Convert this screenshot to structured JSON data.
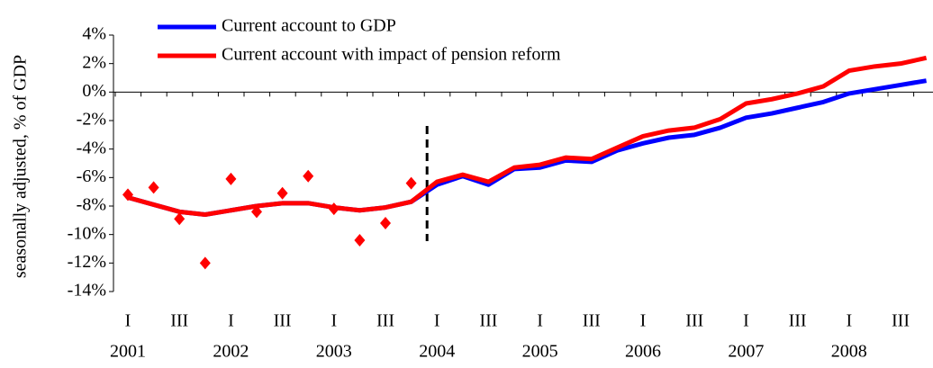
{
  "chart_data": {
    "type": "line",
    "y_label": "seasonally adjusted, % of GDP",
    "categories": [
      "I",
      null,
      "III",
      null,
      "I",
      null,
      "III",
      null,
      "I",
      null,
      "III",
      null,
      "I",
      null,
      "III",
      null,
      "I",
      null,
      "III",
      null,
      "I",
      null,
      "III",
      null,
      "I",
      null,
      "III",
      null,
      "I",
      null,
      "III",
      null
    ],
    "years": [
      "2001",
      "2002",
      "2003",
      "2004",
      "2005",
      "2006",
      "2007",
      "2008"
    ],
    "series": [
      {
        "name": "Current account to GDP",
        "color": "#0000ff",
        "values": [
          -7.4,
          -7.9,
          -8.4,
          -8.6,
          -8.3,
          -8.0,
          -7.8,
          -7.8,
          -8.1,
          -8.3,
          -8.1,
          -7.7,
          -6.5,
          -5.9,
          -6.5,
          -5.4,
          -5.3,
          -4.8,
          -4.9,
          -4.1,
          -3.6,
          -3.2,
          -3.0,
          -2.5,
          -1.8,
          -1.5,
          -1.1,
          -0.7,
          -0.1,
          0.2,
          0.5,
          0.8
        ]
      },
      {
        "name": "Current account with impact of pension reform",
        "color": "#ff0000",
        "values": [
          -7.4,
          -7.9,
          -8.4,
          -8.6,
          -8.3,
          -8.0,
          -7.8,
          -7.8,
          -8.1,
          -8.3,
          -8.1,
          -7.7,
          -6.3,
          -5.8,
          -6.3,
          -5.3,
          -5.1,
          -4.6,
          -4.7,
          -3.9,
          -3.1,
          -2.7,
          -2.5,
          -1.9,
          -0.8,
          -0.5,
          -0.1,
          0.4,
          1.5,
          1.8,
          2.0,
          2.4
        ]
      },
      {
        "color": "#ff0000",
        "marker": "diamond",
        "values": [
          -7.2,
          -6.7,
          -8.9,
          -12.0,
          -6.1,
          -8.4,
          -7.1,
          -5.9,
          -8.2,
          -10.4,
          -9.2,
          -6.4,
          null,
          null,
          null,
          null,
          null,
          null,
          null,
          null,
          null,
          null,
          null,
          null,
          null,
          null,
          null,
          null,
          null,
          null,
          null,
          null
        ]
      }
    ],
    "ylim": [
      -14,
      4
    ],
    "yticks": [
      {
        "value": 4,
        "label": "4%"
      },
      {
        "value": 2,
        "label": "2%"
      },
      {
        "value": 0,
        "label": "0%"
      },
      {
        "value": -2,
        "label": "-2%"
      },
      {
        "value": -4,
        "label": "-4%"
      },
      {
        "value": -6,
        "label": "-6%"
      },
      {
        "value": -8,
        "label": "-8%"
      },
      {
        "value": -10,
        "label": "-10%"
      },
      {
        "value": -12,
        "label": "-12%"
      },
      {
        "value": -14,
        "label": "-14%"
      }
    ]
  }
}
